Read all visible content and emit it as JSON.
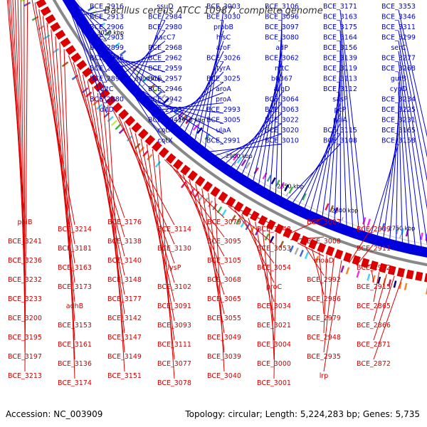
{
  "title": "Bacillus cereus ATCC 10987, complete genome",
  "footer": {
    "accession": "Accession: NC_003909",
    "summary": "Topology: circular; Length: 5,224,283 bp; Genes: 5,735"
  },
  "colors": {
    "forward_strand": "#0000dd",
    "reverse_strand": "#dd0000",
    "backbone": "#888888",
    "label_forward": "#0000cc",
    "label_reverse": "#cc0000"
  },
  "ruler": [
    "3150 kbp",
    "3100 kbp",
    "3050 kbp",
    "3000 kbp",
    "2950 kbp",
    "2900 kbp",
    "2850 kbp",
    "2800 kbp",
    "2750 kbp"
  ],
  "forward_labels": [
    {
      "text": "BCE_3353"
    },
    {
      "text": "BCE_3346"
    },
    {
      "text": "BCE_3311"
    },
    {
      "text": "BCE_3299"
    },
    {
      "text": "serC"
    },
    {
      "text": "BCE_3277"
    },
    {
      "text": "BCE_3268"
    },
    {
      "text": "gutB"
    },
    {
      "text": "cypD"
    },
    {
      "text": "BCE_3234"
    },
    {
      "text": "BCE_3225"
    },
    {
      "text": "BCE_3231"
    },
    {
      "text": "BCE_3165"
    },
    {
      "text": "BCE_3158"
    },
    {
      "text": "BCE_3171"
    },
    {
      "text": "BCE_3163"
    },
    {
      "text": "BCE_3175"
    },
    {
      "text": "BCE_3164"
    },
    {
      "text": "BCE_3156"
    },
    {
      "text": "BCE_3139"
    },
    {
      "text": "BCE_3119"
    },
    {
      "text": "BCE_3113"
    },
    {
      "text": "BCE_3112"
    },
    {
      "text": "sasP"
    },
    {
      "text": "pcP"
    },
    {
      "text": "psiA"
    },
    {
      "text": "BCE_3115"
    },
    {
      "text": "BCE_3108"
    },
    {
      "text": "BCE_3106"
    },
    {
      "text": "BCE_3096"
    },
    {
      "text": "BCE_3097"
    },
    {
      "text": "BCE_3080"
    },
    {
      "text": "adP"
    },
    {
      "text": "BCE_3062"
    },
    {
      "text": "nttC"
    },
    {
      "text": "b0367"
    },
    {
      "text": "argD"
    },
    {
      "text": "BCE_3064"
    },
    {
      "text": "BCE_3063"
    },
    {
      "text": "BCE_3022"
    },
    {
      "text": "BCE_3020"
    },
    {
      "text": "BCE_3010"
    },
    {
      "text": "BCE_3003"
    },
    {
      "text": "BCE_3030"
    },
    {
      "text": "probB"
    },
    {
      "text": "hisC"
    },
    {
      "text": "aroF"
    },
    {
      "text": "BCE_3026"
    },
    {
      "text": "tyrA"
    },
    {
      "text": "BCE_3025"
    },
    {
      "text": "aroA"
    },
    {
      "text": "proA"
    },
    {
      "text": "BCE_2993"
    },
    {
      "text": "BCE_3005"
    },
    {
      "text": "ulaA"
    },
    {
      "text": "BCE_2991"
    },
    {
      "text": "ssuD"
    },
    {
      "text": "BCE_2984"
    },
    {
      "text": "BCE_2980"
    },
    {
      "text": "aacC7"
    },
    {
      "text": "BCE_2968"
    },
    {
      "text": "BCE_2962"
    },
    {
      "text": "BCE_2959"
    },
    {
      "text": "BCE_2957"
    },
    {
      "text": "BCE_2946"
    },
    {
      "text": "BCE_2942"
    },
    {
      "text": "BCE_2923"
    },
    {
      "text": "BCE_2941"
    },
    {
      "text": "cotX"
    },
    {
      "text": "cotX"
    },
    {
      "text": "BCE_2916"
    },
    {
      "text": "BCE_2913"
    },
    {
      "text": "BCE_2906"
    },
    {
      "text": "BCE_2903"
    },
    {
      "text": "BCE_2899"
    },
    {
      "text": "BCE_2896"
    },
    {
      "text": "BCE_2893"
    },
    {
      "text": "BCE_2891"
    },
    {
      "text": "dltC"
    },
    {
      "text": "BCE_2880"
    },
    {
      "text": "dltD"
    }
  ],
  "reverse_labels": [
    {
      "text": "paiB"
    },
    {
      "text": "BCE_3241"
    },
    {
      "text": "BCE_3236"
    },
    {
      "text": "BCE_3232"
    },
    {
      "text": "BCE_3233"
    },
    {
      "text": "BCE_3200"
    },
    {
      "text": "BCE_3195"
    },
    {
      "text": "BCE_3197"
    },
    {
      "text": "BCE_3213"
    },
    {
      "text": "BCE_3214"
    },
    {
      "text": "BCE_3181"
    },
    {
      "text": "BCE_3163"
    },
    {
      "text": "BCE_3173"
    },
    {
      "text": "adhB"
    },
    {
      "text": "BCE_3153"
    },
    {
      "text": "BCE_3161"
    },
    {
      "text": "BCE_3136"
    },
    {
      "text": "BCE_3174"
    },
    {
      "text": "BCE_3176"
    },
    {
      "text": "BCE_3138"
    },
    {
      "text": "BCE_3140"
    },
    {
      "text": "BCE_3148"
    },
    {
      "text": "BCE_3177"
    },
    {
      "text": "BCE_3142"
    },
    {
      "text": "BCE_3147"
    },
    {
      "text": "BCE_3149"
    },
    {
      "text": "BCE_3151"
    },
    {
      "text": "BCE_3114"
    },
    {
      "text": "BCE_3130"
    },
    {
      "text": "lysP"
    },
    {
      "text": "BCE_3102"
    },
    {
      "text": "BCE_3091"
    },
    {
      "text": "BCE_3093"
    },
    {
      "text": "BCE_3111"
    },
    {
      "text": "BCE_3077"
    },
    {
      "text": "BCE_3078"
    },
    {
      "text": "BCE_3079"
    },
    {
      "text": "BCE_3095"
    },
    {
      "text": "BCE_3105"
    },
    {
      "text": "BCE_3068"
    },
    {
      "text": "BCE_3065"
    },
    {
      "text": "BCE_3055"
    },
    {
      "text": "BCE_3049"
    },
    {
      "text": "BCE_3039"
    },
    {
      "text": "BCE_3040"
    },
    {
      "text": "BCE_3048"
    },
    {
      "text": "BCE_3053"
    },
    {
      "text": "BCE_3054"
    },
    {
      "text": "proC"
    },
    {
      "text": "BCE_3034"
    },
    {
      "text": "BCE_3021"
    },
    {
      "text": "BCE_3004"
    },
    {
      "text": "BCE_3000"
    },
    {
      "text": "BCE_3001"
    },
    {
      "text": "BCE_3007"
    },
    {
      "text": "BCE_3008"
    },
    {
      "text": "moaD"
    },
    {
      "text": "BCE_2992"
    },
    {
      "text": "BCE_2986"
    },
    {
      "text": "BCE_2979"
    },
    {
      "text": "BCE_2948"
    },
    {
      "text": "BCE_2935"
    },
    {
      "text": "lrp"
    },
    {
      "text": "BCE_2909"
    },
    {
      "text": "BCE_2911"
    },
    {
      "text": "BCE_2912"
    },
    {
      "text": "BCE_2915"
    },
    {
      "text": "BCE_2865"
    },
    {
      "text": "BCE_2866"
    },
    {
      "text": "BCE_2871"
    },
    {
      "text": "BCE_2872"
    }
  ]
}
